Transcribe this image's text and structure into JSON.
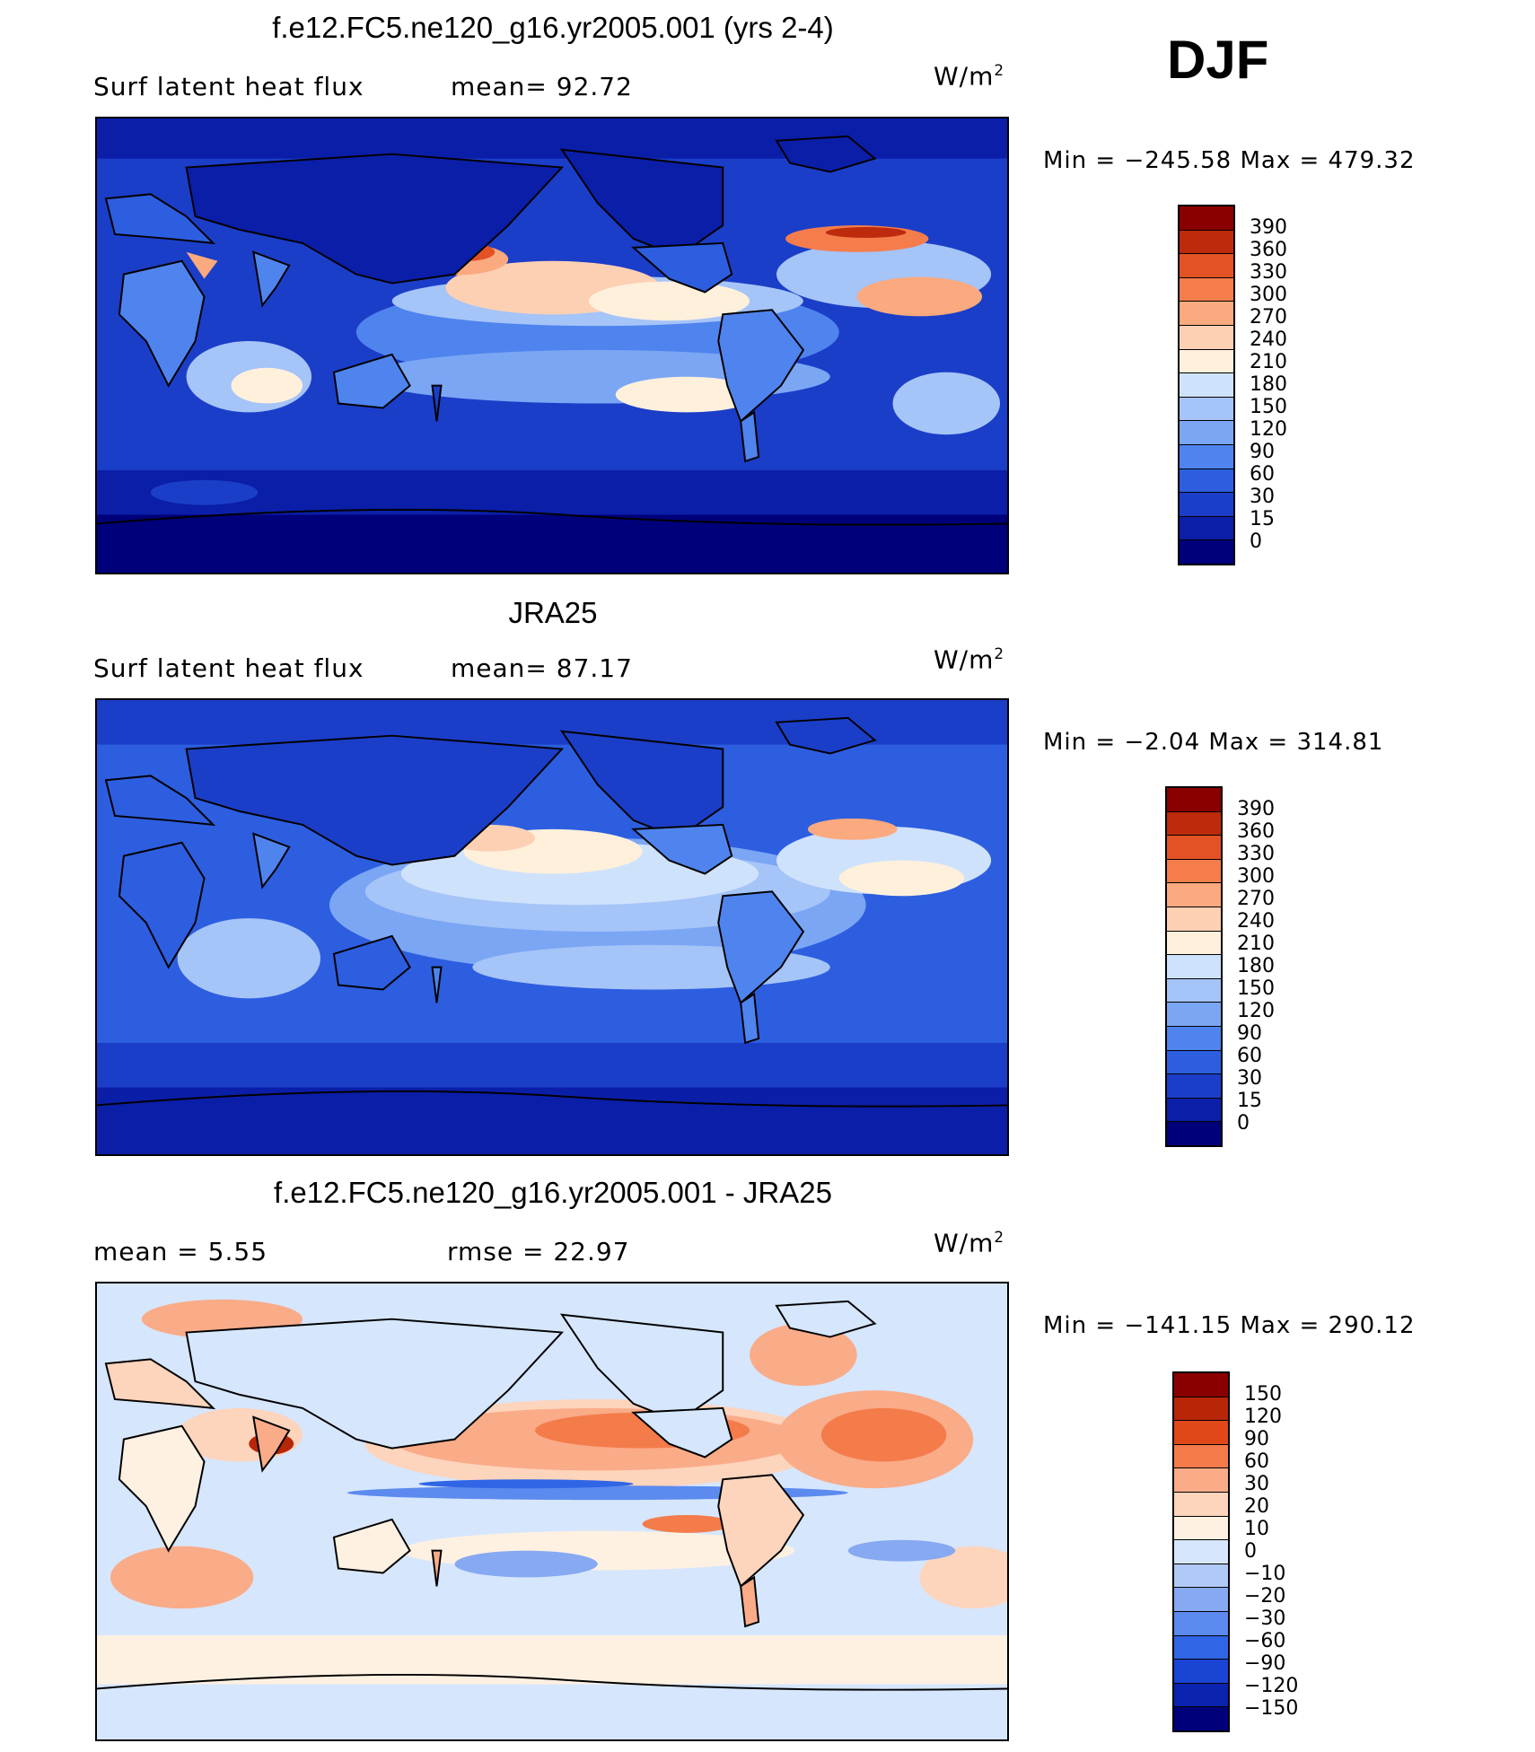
{
  "season": "DJF",
  "colors": {
    "abs_scale": [
      "#00007a",
      "#0b1ea8",
      "#1b3ec8",
      "#2d5ee0",
      "#4f84ee",
      "#7ba6f4",
      "#a5c4f8",
      "#cfe2fc",
      "#fff0dc",
      "#fdd0b4",
      "#fba97e",
      "#f57d4c",
      "#e35225",
      "#bd2a0c",
      "#8a0000"
    ],
    "diff_scale": [
      "#00007a",
      "#0a24b0",
      "#1a44d4",
      "#3066e6",
      "#5c8aee",
      "#86a9f2",
      "#b0c9f7",
      "#d6e6fc",
      "#fff1e2",
      "#fdd4bc",
      "#faab88",
      "#f47b4a",
      "#e0481a",
      "#b82608",
      "#8a0000"
    ],
    "coastline": "#000000"
  },
  "panels": [
    {
      "id": "model",
      "title": "f.e12.FC5.ne120_g16.yr2005.001 (yrs 2-4)",
      "left_label": "Surf  latent  heat  flux",
      "mid_label": "mean=   92.72",
      "units_base": "W/m",
      "units_exp": "2",
      "minmax": "Min  =  −245.58  Max  =  479.32",
      "colorbar_labels": [
        "390",
        "360",
        "330",
        "300",
        "270",
        "240",
        "210",
        "180",
        "150",
        "120",
        "90",
        "60",
        "30",
        "15",
        "0"
      ]
    },
    {
      "id": "obs",
      "title": "JRA25",
      "left_label": "Surf  latent  heat  flux",
      "mid_label": "mean=   87.17",
      "units_base": "W/m",
      "units_exp": "2",
      "minmax": "Min  =    −2.04  Max  =  314.81",
      "colorbar_labels": [
        "390",
        "360",
        "330",
        "300",
        "270",
        "240",
        "210",
        "180",
        "150",
        "120",
        "90",
        "60",
        "30",
        "15",
        "0"
      ]
    },
    {
      "id": "diff",
      "title": "f.e12.FC5.ne120_g16.yr2005.001 - JRA25",
      "left_label": "mean  =     5.55",
      "mid_label": "rmse  =    22.97",
      "units_base": "W/m",
      "units_exp": "2",
      "minmax": "Min  =  −141.15  Max  =  290.12",
      "colorbar_labels": [
        "150",
        "120",
        "90",
        "60",
        "30",
        "20",
        "10",
        "0",
        "−10",
        "−20",
        "−30",
        "−60",
        "−90",
        "−120",
        "−150"
      ]
    }
  ],
  "chart_data": [
    {
      "type": "heatmap",
      "title": "f.e12.FC5.ne120_g16.yr2005.001 (yrs 2-4)",
      "subtitle": "Surf latent heat flux",
      "units": "W/m2",
      "mean": 92.72,
      "min": -245.58,
      "max": 479.32,
      "levels": [
        0,
        15,
        30,
        60,
        90,
        120,
        150,
        180,
        210,
        240,
        270,
        300,
        330,
        360,
        390
      ],
      "projection": "cylindrical equidistant, centered on 180"
    },
    {
      "type": "heatmap",
      "title": "JRA25",
      "subtitle": "Surf latent heat flux",
      "units": "W/m2",
      "mean": 87.17,
      "min": -2.04,
      "max": 314.81,
      "levels": [
        0,
        15,
        30,
        60,
        90,
        120,
        150,
        180,
        210,
        240,
        270,
        300,
        330,
        360,
        390
      ],
      "projection": "cylindrical equidistant, centered on 180"
    },
    {
      "type": "heatmap",
      "title": "f.e12.FC5.ne120_g16.yr2005.001 - JRA25",
      "units": "W/m2",
      "mean": 5.55,
      "rmse": 22.97,
      "min": -141.15,
      "max": 290.12,
      "levels": [
        -150,
        -120,
        -90,
        -60,
        -30,
        -20,
        -10,
        0,
        10,
        20,
        30,
        60,
        90,
        120,
        150
      ],
      "projection": "cylindrical equidistant, centered on 180"
    }
  ]
}
